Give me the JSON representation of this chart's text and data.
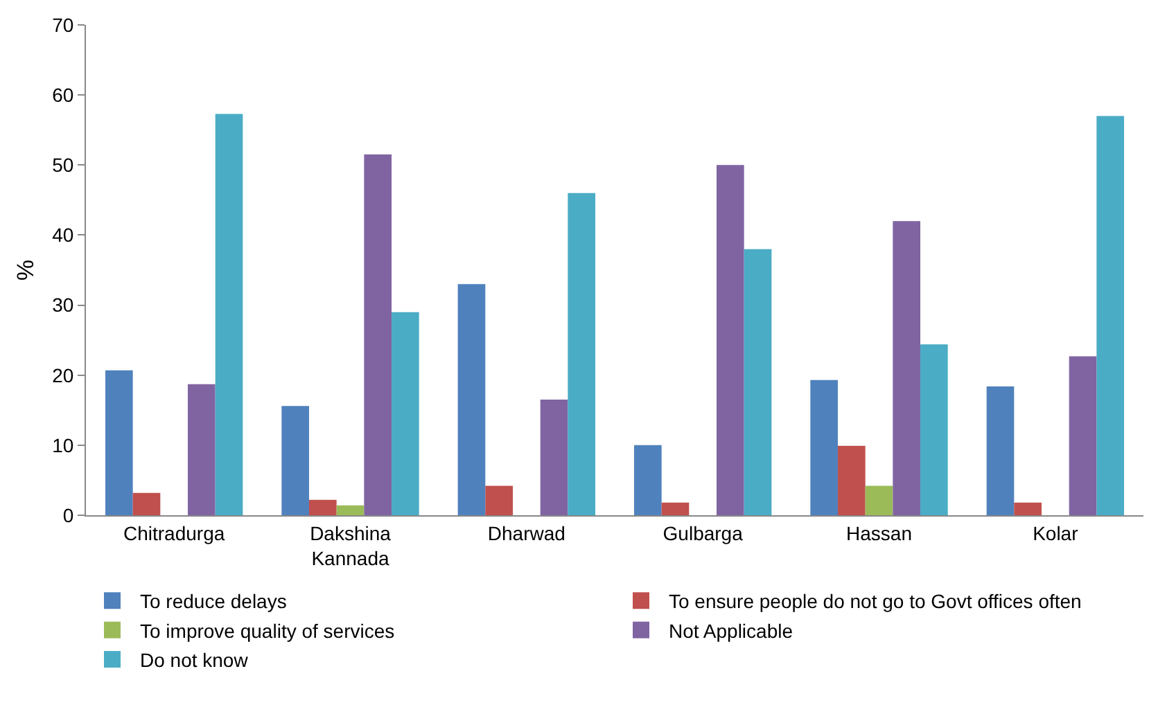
{
  "chart_data": {
    "type": "bar",
    "ylabel": "%",
    "categories": [
      "Chitradurga",
      "Dakshina Kannada",
      "Dharwad",
      "Gulbarga",
      "Hassan",
      "Kolar"
    ],
    "series": [
      {
        "name": "To reduce delays",
        "color": "#4f81bd",
        "values": [
          20.7,
          15.6,
          33,
          10,
          19.3,
          18.4
        ]
      },
      {
        "name": "To ensure people do not go to Govt offices often",
        "color": "#c0504d",
        "values": [
          3.2,
          2.2,
          4.2,
          1.8,
          9.9,
          1.8
        ]
      },
      {
        "name": "To improve quality of services",
        "color": "#9bbb59",
        "values": [
          0,
          1.4,
          0,
          0,
          4.2,
          0
        ]
      },
      {
        "name": "Not Applicable",
        "color": "#8064a2",
        "values": [
          18.7,
          51.5,
          16.5,
          50,
          42,
          22.7
        ]
      },
      {
        "name": "Do not know",
        "color": "#4bacc6",
        "values": [
          57.3,
          29,
          46,
          38,
          24.4,
          57
        ]
      }
    ],
    "ylim": [
      0,
      70
    ],
    "yticks": [
      0,
      10,
      20,
      30,
      40,
      50,
      60,
      70
    ],
    "grid": false,
    "legend": "bottom"
  }
}
